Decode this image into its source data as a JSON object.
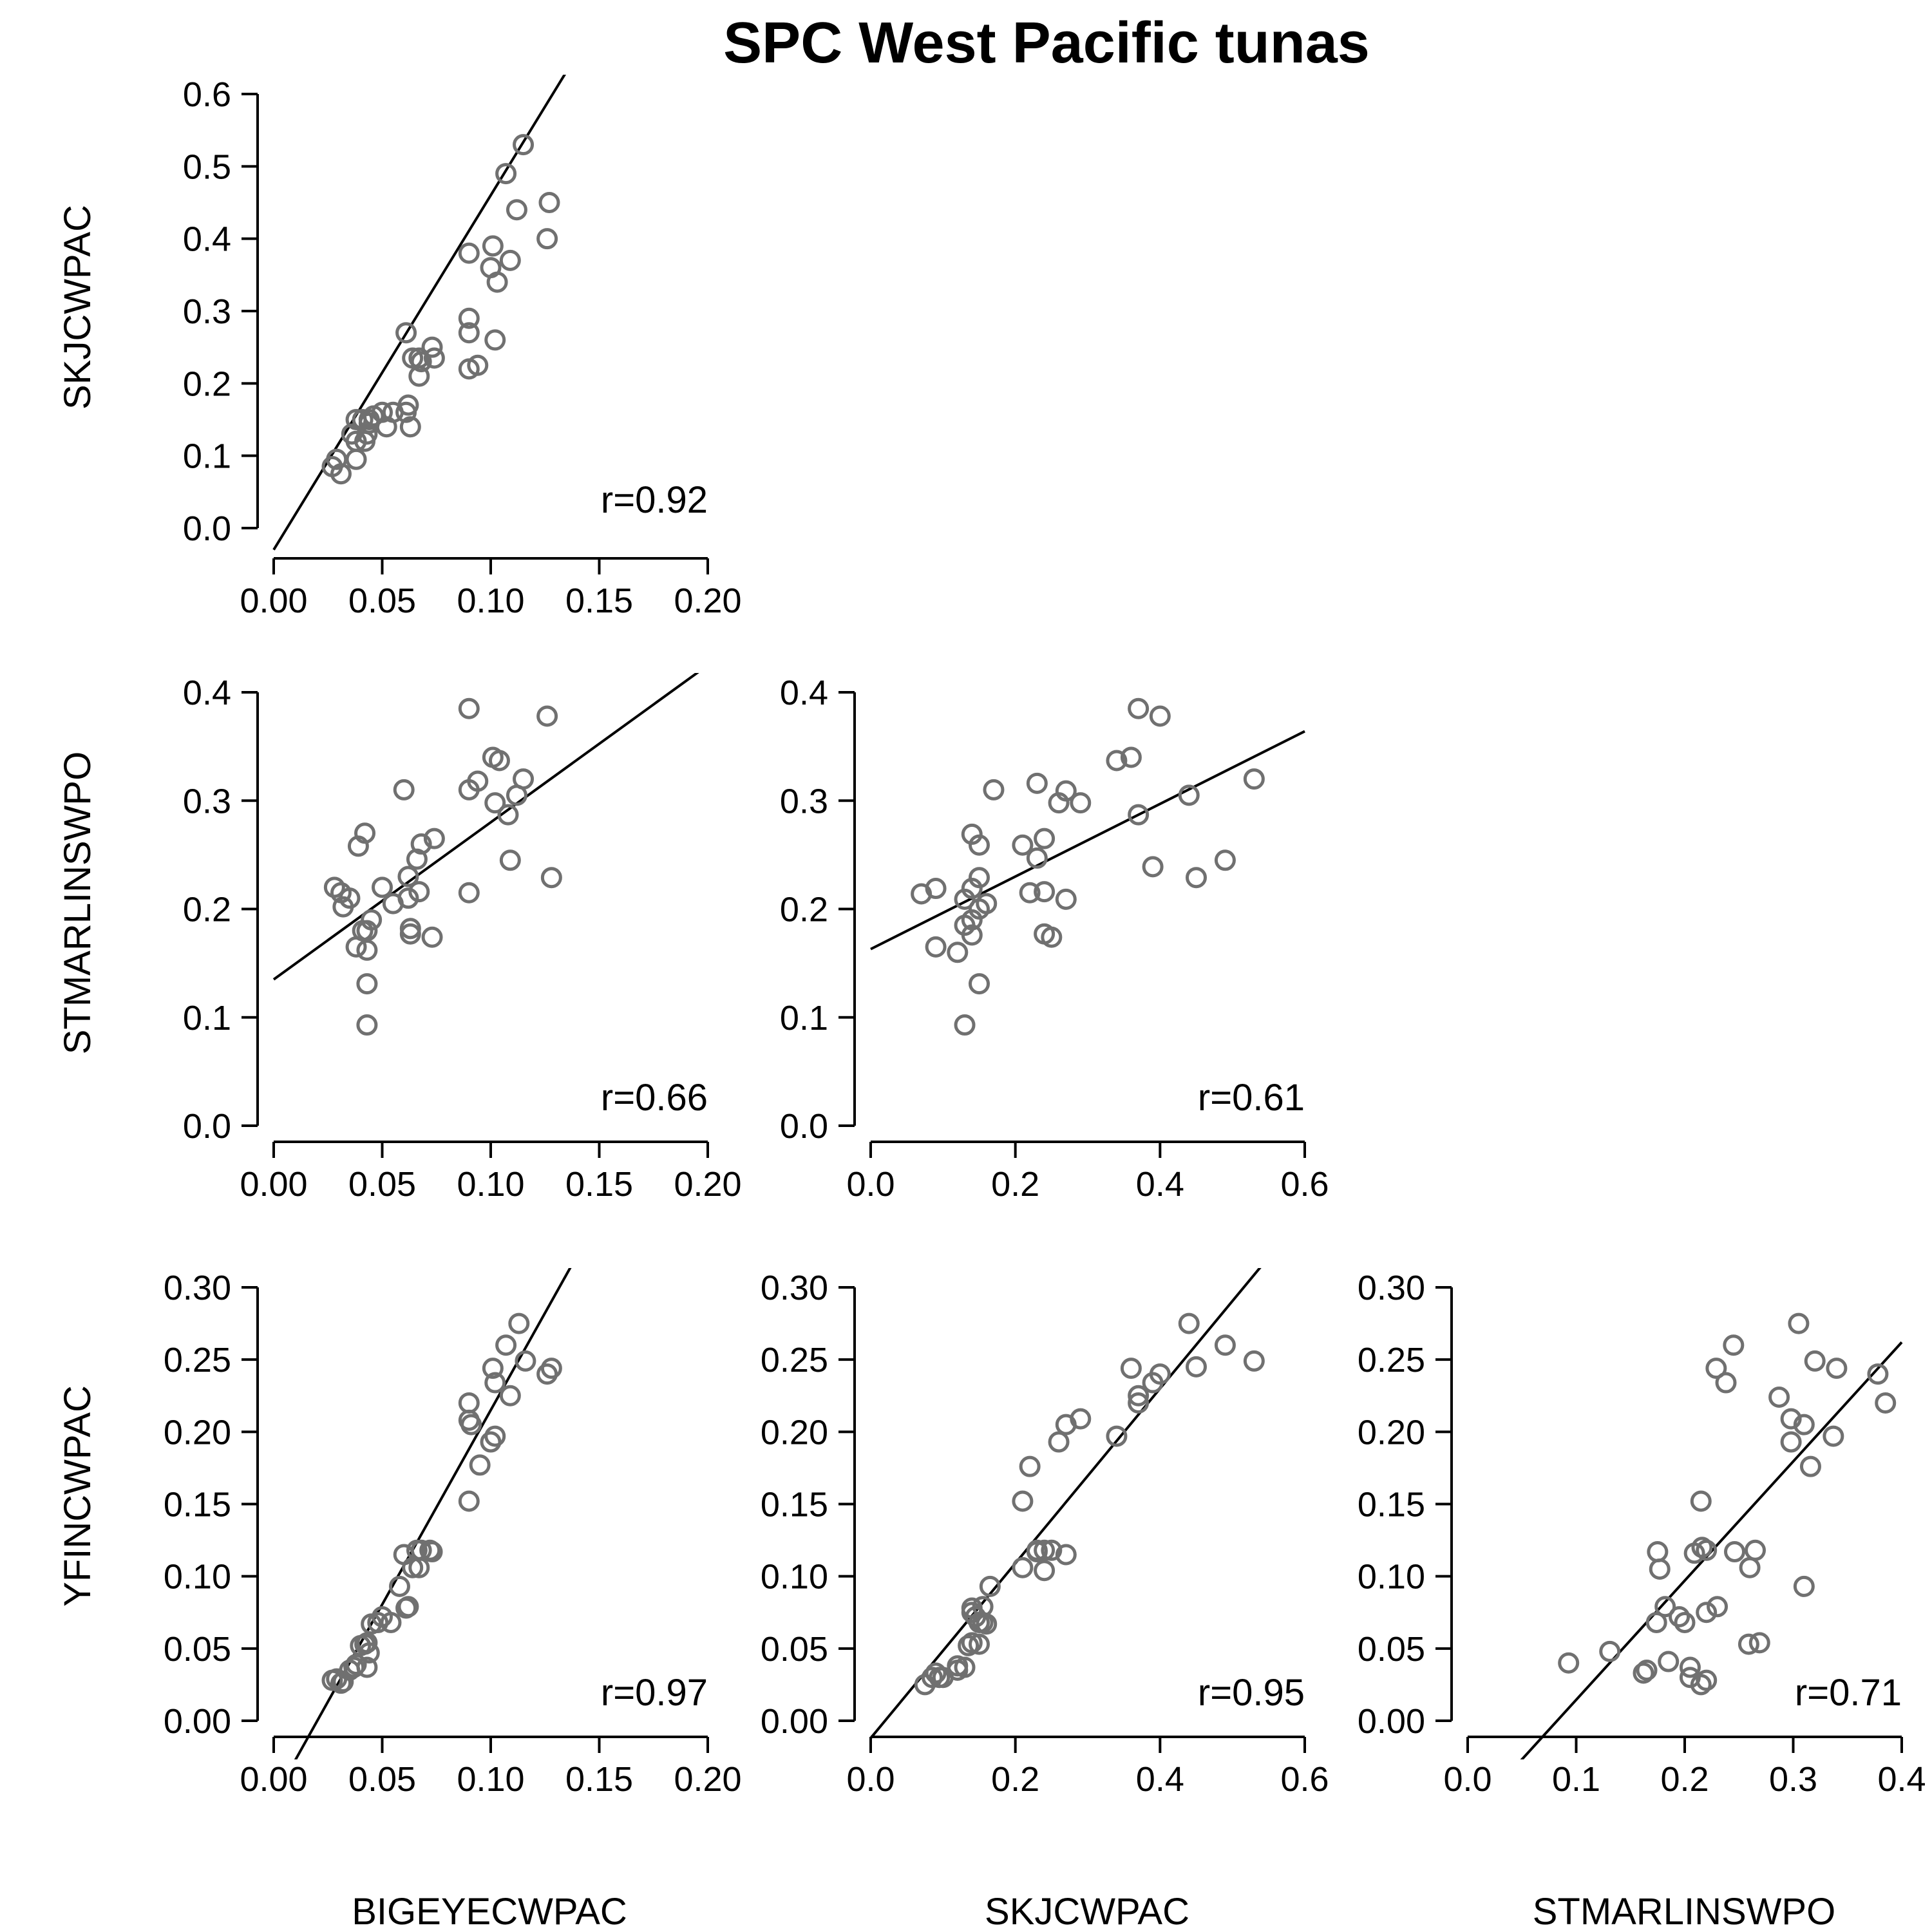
{
  "chart_data": {
    "type": "scatter",
    "title": "SPC West Pacific tunas",
    "variables": [
      "BIGEYECWPAC",
      "SKJCWPAC",
      "STMARLINSWPO",
      "YFINCWPAC"
    ],
    "row_labels": [
      "SKJCWPAC",
      "STMARLINSWPO",
      "YFINCWPAC"
    ],
    "column_labels": [
      "BIGEYECWPAC",
      "SKJCWPAC",
      "STMARLINSWPO"
    ],
    "panels": [
      {
        "id": "skj-vs-bigeye",
        "row": 0,
        "col": 0,
        "x_var": "BIGEYECWPAC",
        "y_var": "SKJCWPAC",
        "xlim": [
          0,
          0.2
        ],
        "ylim": [
          0,
          0.6
        ],
        "x_ticks": [
          "0.00",
          "0.05",
          "0.10",
          "0.15",
          "0.20"
        ],
        "y_ticks": [
          "0.0",
          "0.1",
          "0.2",
          "0.3",
          "0.4",
          "0.5",
          "0.6"
        ],
        "r_label": "r=0.92",
        "fit": {
          "slope": 4.9,
          "intercept": -0.03
        },
        "x": [
          0.115,
          0.107,
          0.127,
          0.112,
          0.126,
          0.101,
          0.1,
          0.109,
          0.09,
          0.103,
          0.09,
          0.09,
          0.102,
          0.094,
          0.09,
          0.061,
          0.064,
          0.068,
          0.073,
          0.067,
          0.074,
          0.067,
          0.062,
          0.061,
          0.063,
          0.055,
          0.05,
          0.046,
          0.052,
          0.044,
          0.041,
          0.044,
          0.038,
          0.043,
          0.036,
          0.038,
          0.042,
          0.029,
          0.027,
          0.031,
          0.038
        ],
        "y": [
          0.53,
          0.49,
          0.45,
          0.44,
          0.4,
          0.39,
          0.36,
          0.37,
          0.38,
          0.34,
          0.29,
          0.27,
          0.26,
          0.225,
          0.22,
          0.27,
          0.235,
          0.23,
          0.25,
          0.21,
          0.235,
          0.235,
          0.17,
          0.16,
          0.14,
          0.16,
          0.16,
          0.155,
          0.14,
          0.15,
          0.15,
          0.145,
          0.15,
          0.13,
          0.13,
          0.12,
          0.12,
          0.095,
          0.085,
          0.075,
          0.095
        ]
      },
      {
        "id": "stmarlin-vs-bigeye",
        "row": 1,
        "col": 0,
        "x_var": "BIGEYECWPAC",
        "y_var": "STMARLINSWPO",
        "xlim": [
          0,
          0.2
        ],
        "ylim": [
          0,
          0.4
        ],
        "x_ticks": [
          "0.00",
          "0.05",
          "0.10",
          "0.15",
          "0.20"
        ],
        "y_ticks": [
          "0.0",
          "0.1",
          "0.2",
          "0.3",
          "0.4"
        ],
        "r_label": "r=0.66",
        "fit": {
          "slope": 1.45,
          "intercept": 0.135
        },
        "x": [
          0.09,
          0.126,
          0.101,
          0.104,
          0.094,
          0.115,
          0.112,
          0.09,
          0.102,
          0.06,
          0.068,
          0.074,
          0.066,
          0.062,
          0.042,
          0.039,
          0.108,
          0.109,
          0.128,
          0.09,
          0.067,
          0.05,
          0.055,
          0.062,
          0.045,
          0.035,
          0.028,
          0.031,
          0.032,
          0.041,
          0.038,
          0.063,
          0.063,
          0.073,
          0.043,
          0.043,
          0.043,
          0.043
        ],
        "y": [
          0.385,
          0.378,
          0.34,
          0.337,
          0.318,
          0.32,
          0.305,
          0.31,
          0.298,
          0.31,
          0.26,
          0.265,
          0.246,
          0.23,
          0.27,
          0.258,
          0.287,
          0.245,
          0.229,
          0.215,
          0.216,
          0.22,
          0.205,
          0.21,
          0.19,
          0.21,
          0.22,
          0.215,
          0.202,
          0.18,
          0.165,
          0.182,
          0.177,
          0.174,
          0.162,
          0.131,
          0.093,
          0.18
        ]
      },
      {
        "id": "stmarlin-vs-skj",
        "row": 1,
        "col": 1,
        "x_var": "SKJCWPAC",
        "y_var": "STMARLINSWPO",
        "xlim": [
          0,
          0.6
        ],
        "ylim": [
          0,
          0.4
        ],
        "x_ticks": [
          "0.0",
          "0.2",
          "0.4",
          "0.6"
        ],
        "y_ticks": [
          "0.0",
          "0.1",
          "0.2",
          "0.3",
          "0.4"
        ],
        "r_label": "r=0.61",
        "fit": {
          "slope": 0.335,
          "intercept": 0.163
        },
        "x": [
          0.37,
          0.4,
          0.34,
          0.36,
          0.17,
          0.23,
          0.27,
          0.26,
          0.29,
          0.53,
          0.44,
          0.37,
          0.49,
          0.39,
          0.45,
          0.14,
          0.15,
          0.21,
          0.24,
          0.23,
          0.15,
          0.22,
          0.24,
          0.27,
          0.07,
          0.09,
          0.14,
          0.13,
          0.16,
          0.15,
          0.14,
          0.13,
          0.14,
          0.09,
          0.12,
          0.24,
          0.25,
          0.15,
          0.13
        ],
        "y": [
          0.385,
          0.378,
          0.337,
          0.34,
          0.31,
          0.316,
          0.309,
          0.298,
          0.298,
          0.32,
          0.305,
          0.287,
          0.245,
          0.239,
          0.229,
          0.269,
          0.259,
          0.259,
          0.265,
          0.247,
          0.229,
          0.215,
          0.216,
          0.209,
          0.214,
          0.219,
          0.219,
          0.209,
          0.205,
          0.2,
          0.19,
          0.185,
          0.176,
          0.165,
          0.16,
          0.177,
          0.174,
          0.131,
          0.093
        ]
      },
      {
        "id": "yfin-vs-bigeye",
        "row": 2,
        "col": 0,
        "x_var": "BIGEYECWPAC",
        "y_var": "YFINCWPAC",
        "xlim": [
          0,
          0.2
        ],
        "ylim": [
          0,
          0.3
        ],
        "x_ticks": [
          "0.00",
          "0.05",
          "0.10",
          "0.15",
          "0.20"
        ],
        "y_ticks": [
          "0.00",
          "0.05",
          "0.10",
          "0.15",
          "0.20",
          "0.25",
          "0.30"
        ],
        "r_label": "r=0.97",
        "fit": {
          "slope": 2.69,
          "intercept": -0.054
        },
        "x": [
          0.113,
          0.107,
          0.116,
          0.128,
          0.126,
          0.101,
          0.102,
          0.109,
          0.09,
          0.09,
          0.091,
          0.102,
          0.1,
          0.095,
          0.09,
          0.06,
          0.068,
          0.066,
          0.072,
          0.073,
          0.064,
          0.067,
          0.058,
          0.062,
          0.061,
          0.05,
          0.054,
          0.048,
          0.045,
          0.043,
          0.042,
          0.044,
          0.04,
          0.043,
          0.035,
          0.037,
          0.038,
          0.029,
          0.027,
          0.032,
          0.031
        ],
        "y": [
          0.275,
          0.26,
          0.249,
          0.244,
          0.24,
          0.244,
          0.234,
          0.225,
          0.22,
          0.208,
          0.205,
          0.197,
          0.193,
          0.177,
          0.152,
          0.115,
          0.118,
          0.118,
          0.118,
          0.117,
          0.106,
          0.106,
          0.093,
          0.079,
          0.078,
          0.072,
          0.068,
          0.068,
          0.067,
          0.054,
          0.053,
          0.047,
          0.052,
          0.037,
          0.035,
          0.037,
          0.039,
          0.029,
          0.028,
          0.027,
          0.026
        ]
      },
      {
        "id": "yfin-vs-skj",
        "row": 2,
        "col": 1,
        "x_var": "SKJCWPAC",
        "y_var": "YFINCWPAC",
        "xlim": [
          0,
          0.6
        ],
        "ylim": [
          0,
          0.3
        ],
        "x_ticks": [
          "0.0",
          "0.2",
          "0.4",
          "0.6"
        ],
        "y_ticks": [
          "0.00",
          "0.05",
          "0.10",
          "0.15",
          "0.20",
          "0.25",
          "0.30"
        ],
        "r_label": "r=0.95",
        "fit": {
          "slope": 0.605,
          "intercept": -0.012
        },
        "x": [
          0.44,
          0.49,
          0.53,
          0.45,
          0.36,
          0.4,
          0.39,
          0.37,
          0.37,
          0.29,
          0.27,
          0.26,
          0.34,
          0.22,
          0.21,
          0.23,
          0.24,
          0.25,
          0.27,
          0.23,
          0.24,
          0.21,
          0.165,
          0.14,
          0.155,
          0.14,
          0.145,
          0.155,
          0.15,
          0.16,
          0.14,
          0.135,
          0.15,
          0.13,
          0.12,
          0.12,
          0.09,
          0.095,
          0.075,
          0.085,
          0.1
        ],
        "y": [
          0.275,
          0.26,
          0.249,
          0.245,
          0.244,
          0.24,
          0.234,
          0.225,
          0.22,
          0.209,
          0.205,
          0.193,
          0.197,
          0.176,
          0.152,
          0.118,
          0.118,
          0.118,
          0.115,
          0.117,
          0.104,
          0.106,
          0.093,
          0.078,
          0.079,
          0.075,
          0.072,
          0.068,
          0.068,
          0.067,
          0.054,
          0.052,
          0.053,
          0.037,
          0.035,
          0.038,
          0.033,
          0.03,
          0.025,
          0.03,
          0.03
        ]
      },
      {
        "id": "yfin-vs-stmarlin",
        "row": 2,
        "col": 2,
        "x_var": "STMARLINSWPO",
        "y_var": "YFINCWPAC",
        "xlim": [
          0,
          0.4
        ],
        "ylim": [
          0,
          0.3
        ],
        "x_ticks": [
          "0.0",
          "0.1",
          "0.2",
          "0.3",
          "0.4"
        ],
        "y_ticks": [
          "0.00",
          "0.05",
          "0.10",
          "0.15",
          "0.20",
          "0.25",
          "0.30"
        ],
        "r_label": "r=0.71",
        "fit": {
          "slope": 0.825,
          "intercept": -0.068
        },
        "x": [
          0.305,
          0.245,
          0.229,
          0.32,
          0.238,
          0.34,
          0.378,
          0.385,
          0.287,
          0.298,
          0.298,
          0.31,
          0.337,
          0.316,
          0.215,
          0.216,
          0.209,
          0.22,
          0.265,
          0.175,
          0.177,
          0.26,
          0.246,
          0.31,
          0.174,
          0.182,
          0.195,
          0.2,
          0.23,
          0.22,
          0.259,
          0.269,
          0.093,
          0.131,
          0.165,
          0.162,
          0.185,
          0.205,
          0.205,
          0.215,
          0.22
        ],
        "y": [
          0.275,
          0.26,
          0.244,
          0.249,
          0.234,
          0.244,
          0.24,
          0.22,
          0.224,
          0.209,
          0.193,
          0.205,
          0.197,
          0.176,
          0.152,
          0.12,
          0.116,
          0.118,
          0.118,
          0.117,
          0.105,
          0.106,
          0.117,
          0.093,
          0.068,
          0.079,
          0.072,
          0.068,
          0.079,
          0.075,
          0.053,
          0.054,
          0.04,
          0.048,
          0.035,
          0.033,
          0.041,
          0.037,
          0.03,
          0.025,
          0.028
        ]
      }
    ]
  }
}
